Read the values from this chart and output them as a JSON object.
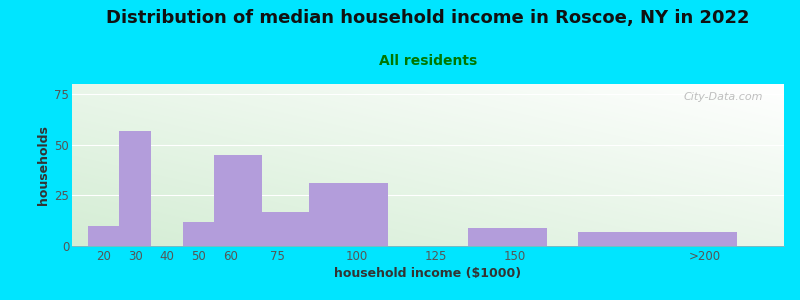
{
  "title": "Distribution of median household income in Roscoe, NY in 2022",
  "subtitle": "All residents",
  "xlabel": "household income ($1000)",
  "ylabel": "households",
  "bar_values": [
    10,
    57,
    0,
    12,
    45,
    17,
    31,
    0,
    9,
    7
  ],
  "bar_lefts": [
    15,
    25,
    35,
    45,
    55,
    70,
    85,
    110,
    135,
    170
  ],
  "bar_widths": [
    10,
    10,
    10,
    10,
    15,
    15,
    25,
    25,
    25,
    50
  ],
  "bar_color": "#b39ddb",
  "background_color": "#00e5ff",
  "ylim": [
    0,
    80
  ],
  "xlim": [
    10,
    235
  ],
  "yticks": [
    0,
    25,
    50,
    75
  ],
  "xtick_positions": [
    20,
    30,
    40,
    50,
    60,
    75,
    100,
    125,
    150,
    210
  ],
  "xtick_labels": [
    "20",
    "30",
    "40",
    "50",
    "60",
    "75",
    "100",
    "125",
    "150",
    ">200"
  ],
  "title_fontsize": 13,
  "subtitle_fontsize": 10,
  "axis_label_fontsize": 9,
  "tick_label_fontsize": 8.5,
  "watermark_text": "City-Data.com",
  "gradient_colors": [
    "#c8e8c8",
    "#f0f8f0",
    "#ffffff"
  ],
  "subtitle_color": "#007700",
  "title_color": "#111111",
  "tick_color": "#555555",
  "label_color": "#333333",
  "watermark_color": "#aaaaaa"
}
